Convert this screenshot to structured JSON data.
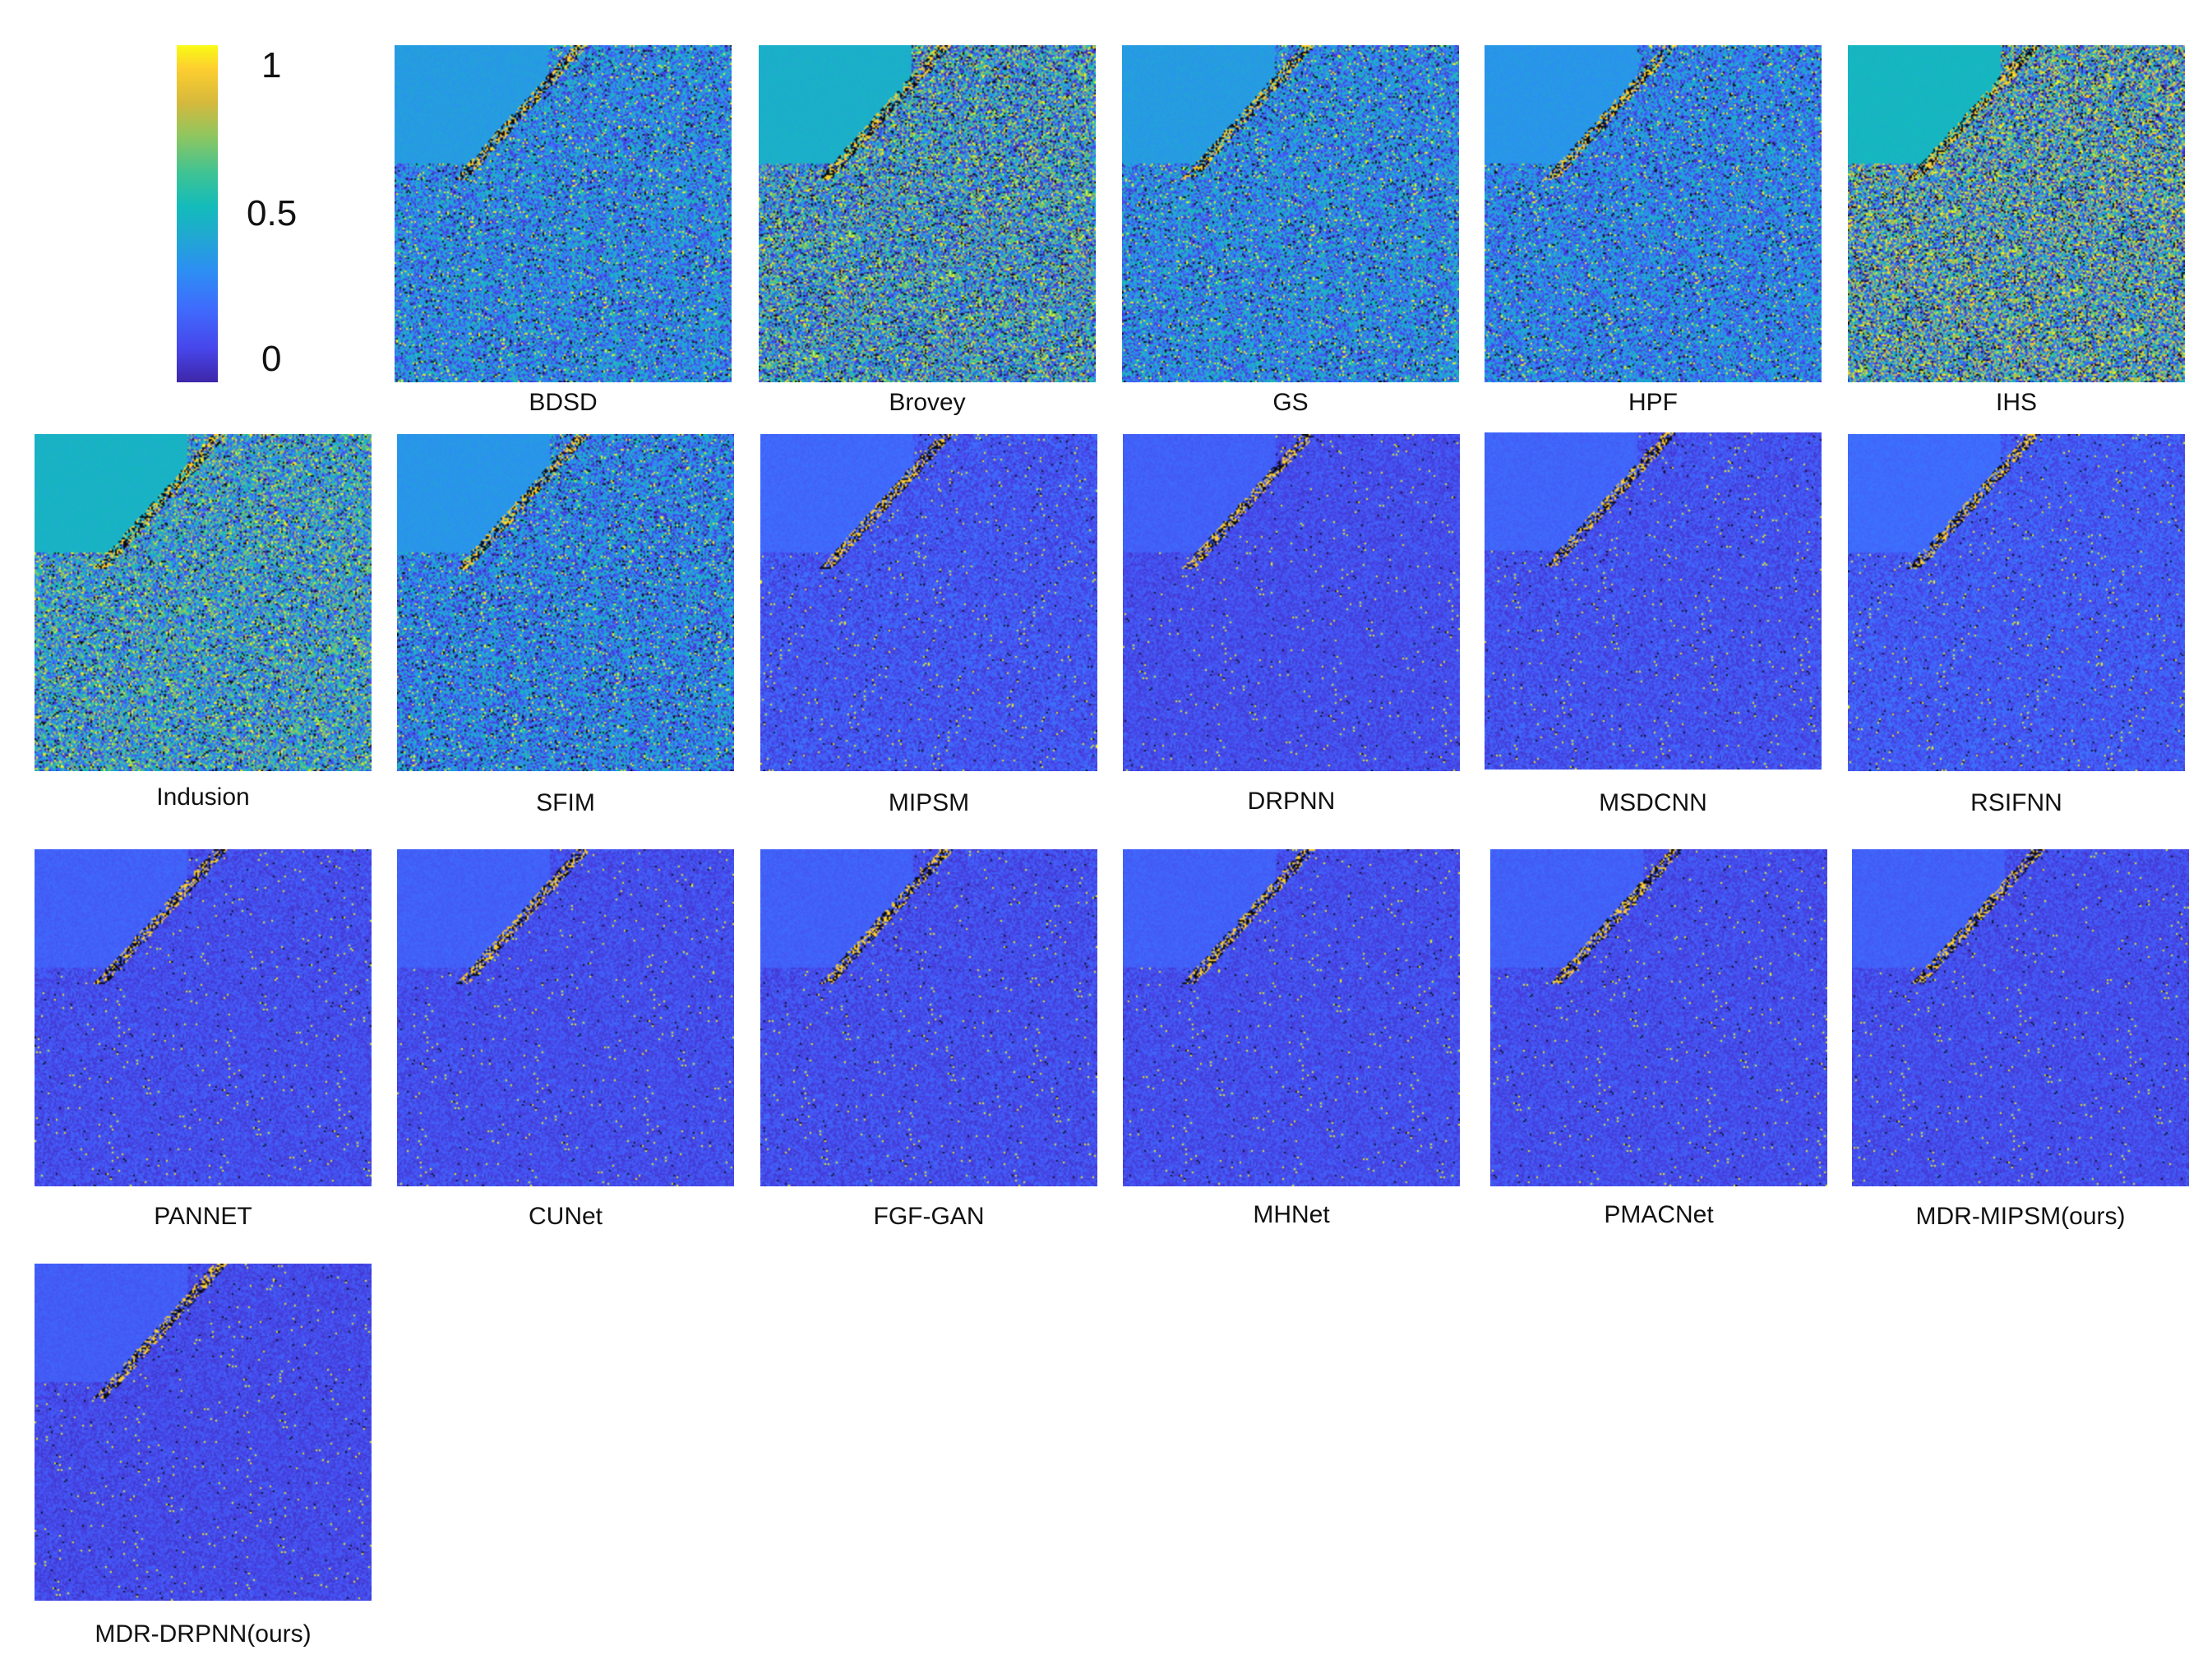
{
  "colorbar": {
    "ticks": [
      "1",
      "0.5",
      "0"
    ],
    "colors": [
      "#3e26a8",
      "#4746eb",
      "#3f6cfd",
      "#2d8ef3",
      "#1faacf",
      "#13bbbb",
      "#3ec394",
      "#8ec660",
      "#d6b93c",
      "#fdce2f",
      "#f9fb15"
    ]
  },
  "panels": [
    {
      "label": "BDSD",
      "noise": 0.55,
      "mean": 0.3
    },
    {
      "label": "Brovey",
      "noise": 0.85,
      "mean": 0.38
    },
    {
      "label": "GS",
      "noise": 0.55,
      "mean": 0.3
    },
    {
      "label": "HPF",
      "noise": 0.5,
      "mean": 0.28
    },
    {
      "label": "IHS",
      "noise": 0.95,
      "mean": 0.42
    },
    {
      "label": "Indusion",
      "noise": 0.75,
      "mean": 0.4
    },
    {
      "label": "SFIM",
      "noise": 0.55,
      "mean": 0.28
    },
    {
      "label": "MIPSM",
      "noise": 0.18,
      "mean": 0.14
    },
    {
      "label": "DRPNN",
      "noise": 0.14,
      "mean": 0.12
    },
    {
      "label": "MSDCNN",
      "noise": 0.16,
      "mean": 0.13
    },
    {
      "label": "RSIFNN",
      "noise": 0.18,
      "mean": 0.15
    },
    {
      "label": "PANNET",
      "noise": 0.14,
      "mean": 0.12
    },
    {
      "label": "CUNet",
      "noise": 0.14,
      "mean": 0.12
    },
    {
      "label": "FGF-GAN",
      "noise": 0.15,
      "mean": 0.12
    },
    {
      "label": "MHNet",
      "noise": 0.14,
      "mean": 0.12
    },
    {
      "label": "PMACNet",
      "noise": 0.14,
      "mean": 0.12
    },
    {
      "label": "MDR-MIPSM(ours)",
      "noise": 0.14,
      "mean": 0.12
    },
    {
      "label": "MDR-DRPNN(ours)",
      "noise": 0.13,
      "mean": 0.11
    }
  ]
}
